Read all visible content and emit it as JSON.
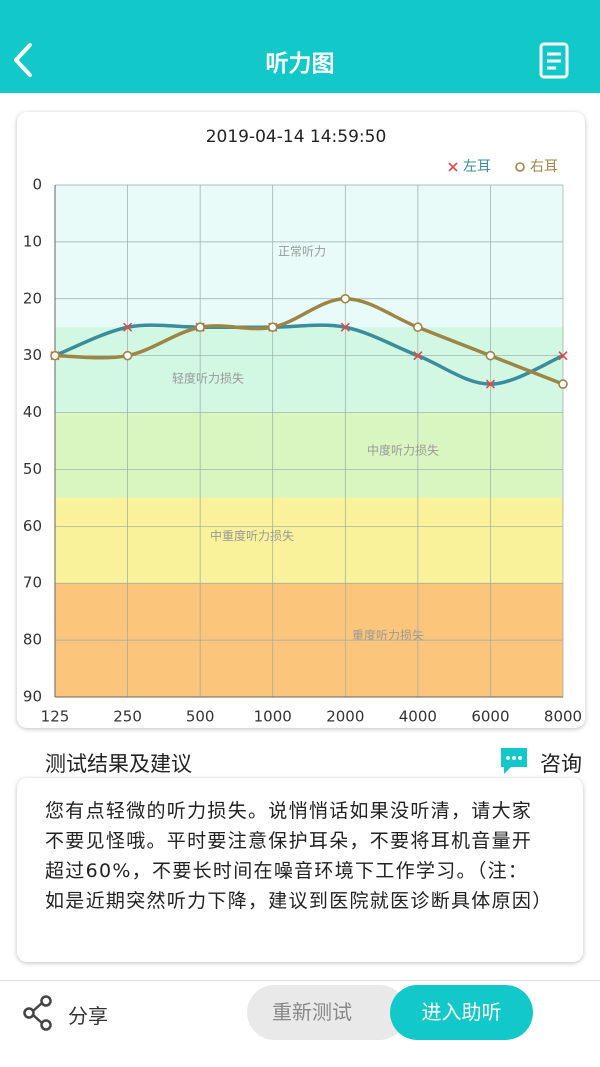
{
  "header": {
    "title": "听力图"
  },
  "chart_data": {
    "type": "line",
    "title": "2019-04-14 14:59:50",
    "categories": [
      "125",
      "250",
      "500",
      "1000",
      "2000",
      "4000",
      "6000",
      "8000"
    ],
    "series": [
      {
        "name": "左耳",
        "color": "#3a8d9c",
        "marker": "x",
        "marker_color": "#e04848",
        "values": [
          30,
          25,
          25,
          25,
          25,
          30,
          35,
          30
        ]
      },
      {
        "name": "右耳",
        "color": "#9c8545",
        "marker": "o",
        "marker_color": "#9c8545",
        "values": [
          30,
          30,
          25,
          25,
          20,
          25,
          30,
          35
        ]
      }
    ],
    "ylim": [
      0,
      90
    ],
    "y_inverted": true,
    "yticks": [
      0,
      10,
      20,
      30,
      40,
      50,
      60,
      70,
      80,
      90
    ],
    "grid": true,
    "legend": "top-right",
    "smooth": true,
    "bands": [
      {
        "label": "正常听力",
        "range": [
          0,
          25
        ],
        "color": "#e9fbf8"
      },
      {
        "label": "轻度听力损失",
        "range": [
          25,
          40
        ],
        "color": "#d2f7e2"
      },
      {
        "label": "中度听力损失",
        "range": [
          40,
          55
        ],
        "color": "#daf6c0"
      },
      {
        "label": "中重度听力损失",
        "range": [
          55,
          70
        ],
        "color": "#f9f29a"
      },
      {
        "label": "重度听力损失",
        "range": [
          70,
          90
        ],
        "color": "#fcc57c"
      }
    ]
  },
  "result": {
    "heading": "测试结果及建议",
    "consult": "咨询",
    "text": "您有点轻微的听力损失。说悄悄话如果没听清，请大家不要见怪哦。平时要注意保护耳朵，不要将耳机音量开超过60%，不要长时间在噪音环境下工作学习。（注：如是近期突然听力下降，建议到医院就医诊断具体原因）"
  },
  "footer": {
    "share": "分享",
    "retest": "重新测试",
    "hearing_aid": "进入助听"
  }
}
